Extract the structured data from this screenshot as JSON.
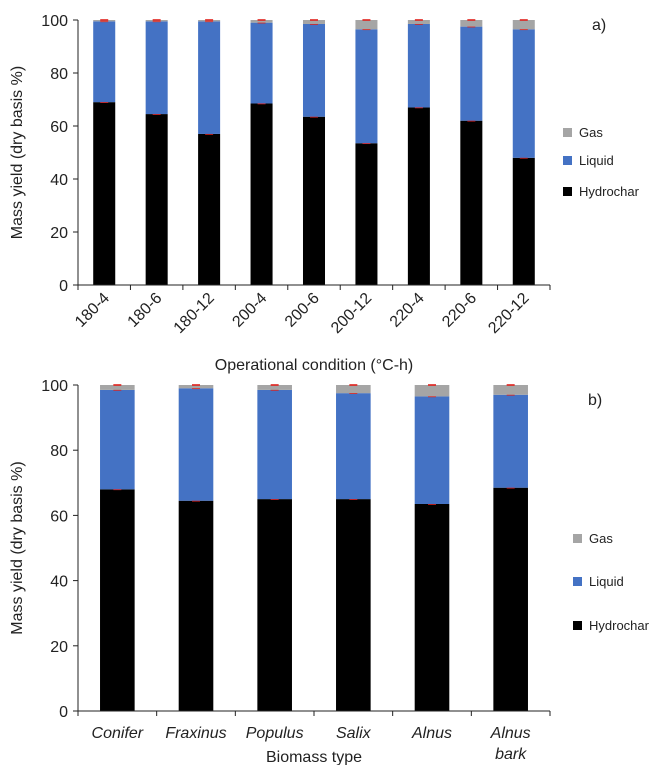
{
  "colors": {
    "hydrochar": "#000000",
    "liquid": "#4472C4",
    "gas": "#A5A5A5",
    "error_bar": "#E0201B",
    "axis": "#222222"
  },
  "chart_data": [
    {
      "type": "bar",
      "stacked": true,
      "panel_label": "a)",
      "xlabel": "Operational condition (°C-h)",
      "ylabel": "Mass yield (dry basis %)",
      "ylim": [
        0,
        100
      ],
      "yticks": [
        "0",
        "20",
        "40",
        "60",
        "80",
        "100"
      ],
      "categories": [
        "180-4",
        "180-6",
        "180-12",
        "200-4",
        "200-6",
        "200-12",
        "220-4",
        "220-6",
        "220-12"
      ],
      "category_style": "rotated",
      "series": [
        {
          "name": "Hydrochar",
          "values": [
            69,
            64.5,
            57,
            68.5,
            63.5,
            53.5,
            67,
            62,
            48
          ]
        },
        {
          "name": "Liquid",
          "values": [
            30.5,
            35,
            42.5,
            30.5,
            35,
            43,
            31.5,
            35.5,
            48.5
          ]
        },
        {
          "name": "Gas",
          "values": [
            0.5,
            0.5,
            0.5,
            1,
            1.5,
            3.5,
            1.5,
            2.5,
            3.5
          ]
        }
      ],
      "legend": [
        "Gas",
        "Liquid",
        "Hydrochar"
      ],
      "legend_position": "right",
      "grid": false
    },
    {
      "type": "bar",
      "stacked": true,
      "panel_label": "b)",
      "xlabel": "Biomass type",
      "ylabel": "Mass yield (dry basis %)",
      "ylim": [
        0,
        100
      ],
      "yticks": [
        "0",
        "20",
        "40",
        "60",
        "80",
        "100"
      ],
      "categories": [
        "Conifer",
        "Fraxinus",
        "Populus",
        "Salix",
        "Alnus",
        "Alnus\nbark"
      ],
      "category_style": "italic",
      "series": [
        {
          "name": "Hydrochar",
          "values": [
            68,
            64.5,
            65,
            65,
            63.5,
            68.5
          ]
        },
        {
          "name": "Liquid",
          "values": [
            30.5,
            34.5,
            33.5,
            32.5,
            33,
            28.5
          ]
        },
        {
          "name": "Gas",
          "values": [
            1.5,
            1,
            1.5,
            2.5,
            3.5,
            3
          ]
        }
      ],
      "legend": [
        "Gas",
        "Liquid",
        "Hydrochar"
      ],
      "legend_position": "right",
      "grid": false
    }
  ]
}
